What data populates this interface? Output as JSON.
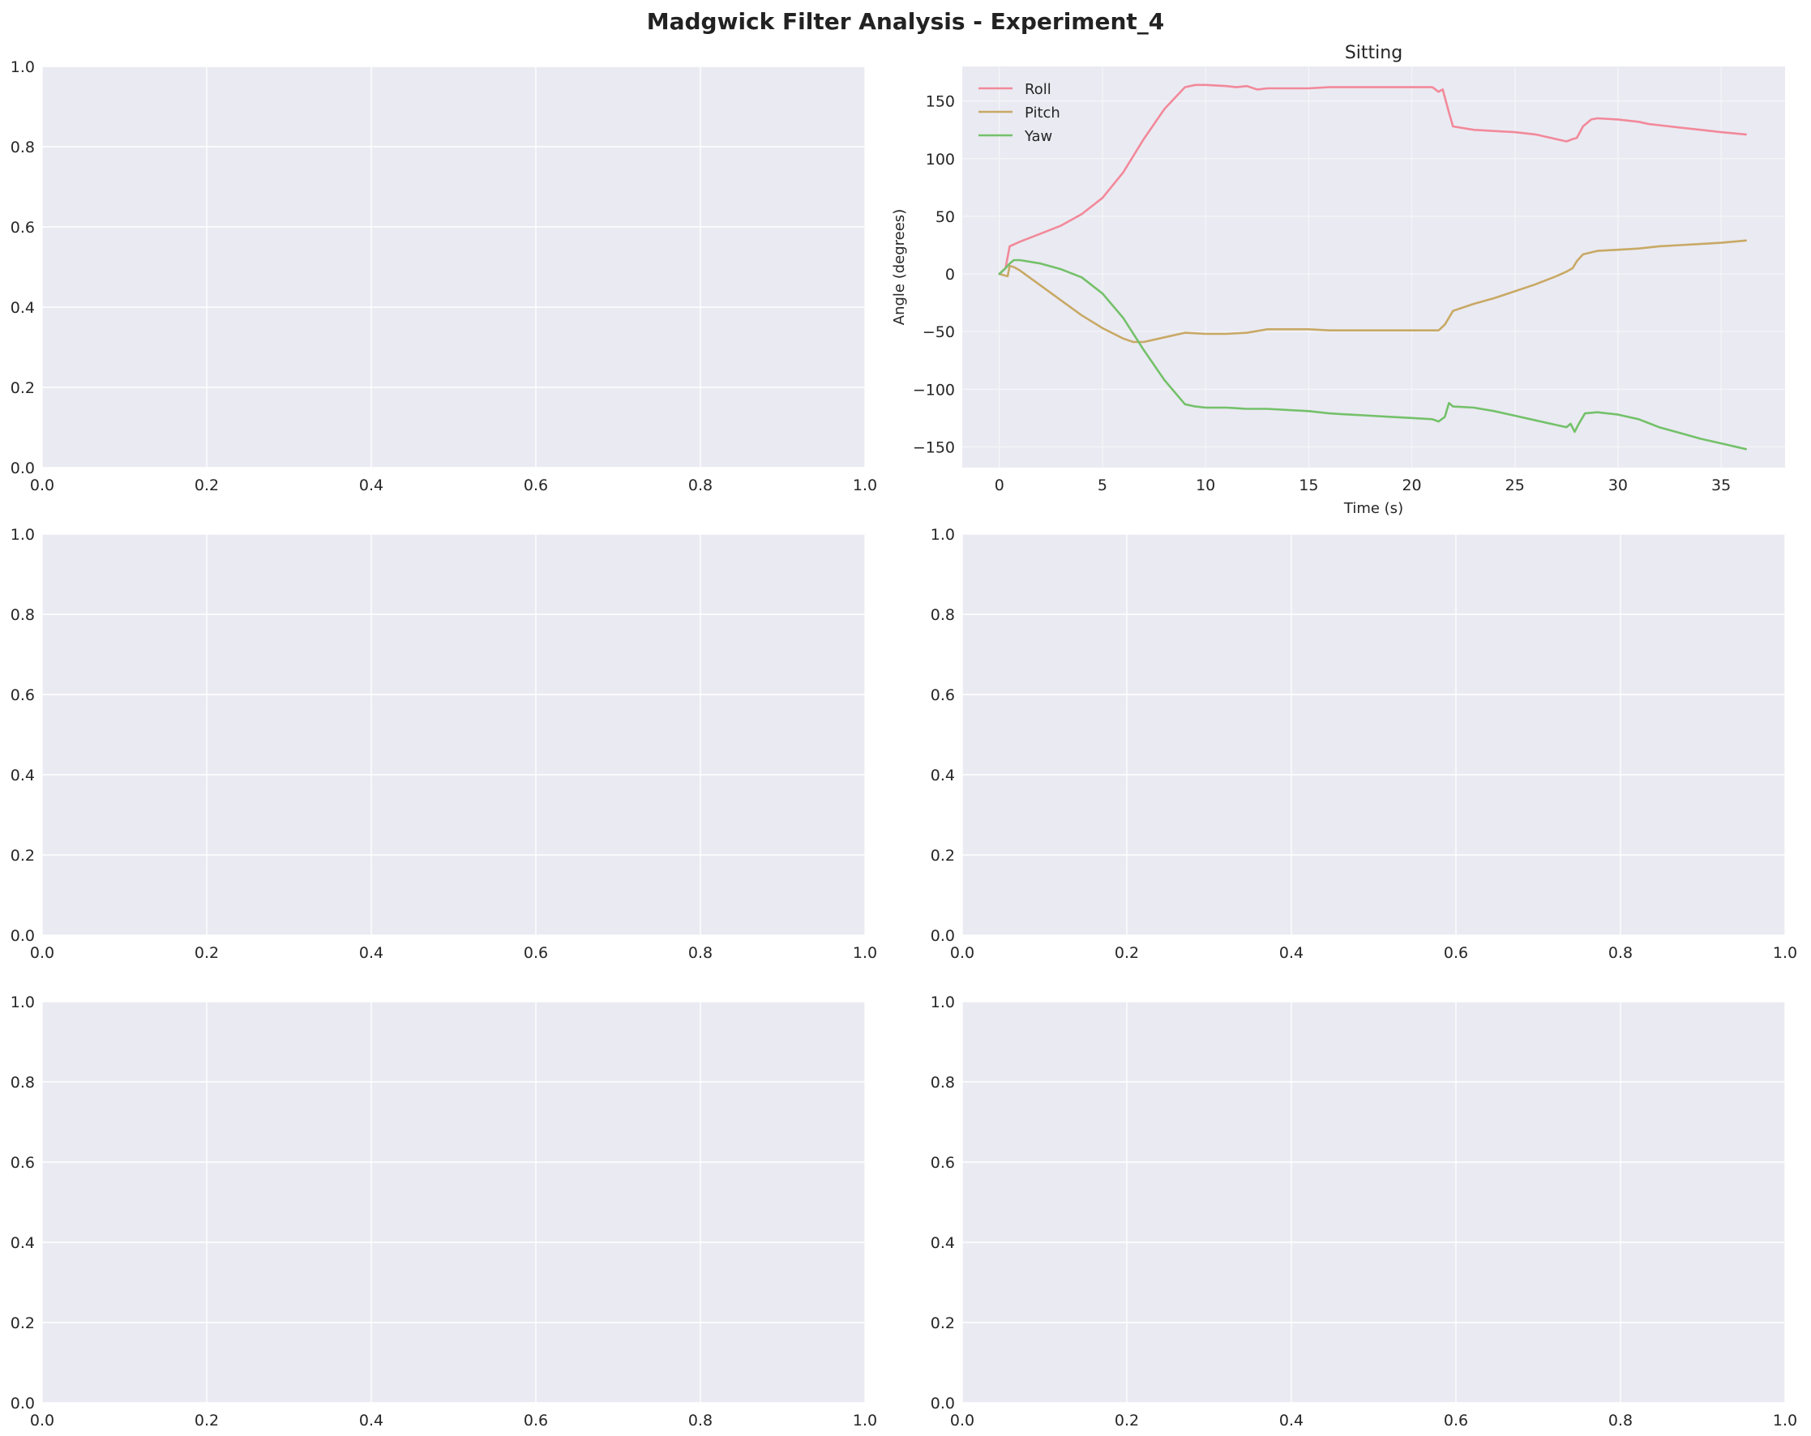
{
  "figure_title": "Madgwick Filter Analysis - Experiment_4",
  "chart_data": [
    {
      "type": "line",
      "title": "",
      "xlabel": "",
      "ylabel": "",
      "xlim": [
        0,
        1
      ],
      "ylim": [
        0,
        1
      ],
      "x_ticks": [
        "0.0",
        "0.2",
        "0.4",
        "0.6",
        "0.8",
        "1.0"
      ],
      "y_ticks": [
        "0.0",
        "0.2",
        "0.4",
        "0.6",
        "0.8",
        "1.0"
      ],
      "grid": true,
      "series": []
    },
    {
      "type": "line",
      "title": "Sitting",
      "xlabel": "Time (s)",
      "ylabel": "Angle (degrees)",
      "xlim": [
        -1.8,
        38.1
      ],
      "ylim": [
        -168,
        180
      ],
      "x_ticks": [
        "0",
        "5",
        "10",
        "15",
        "20",
        "25",
        "30",
        "35"
      ],
      "y_ticks": [
        "150",
        "100",
        "50",
        "0",
        "−50",
        "−100",
        "−150"
      ],
      "grid": true,
      "legend_position": "top-left",
      "series": [
        {
          "name": "Roll",
          "color": "#f2899a",
          "x": [
            0,
            0.3,
            0.5,
            1,
            2,
            3,
            4,
            5,
            6,
            7,
            8,
            9,
            9.5,
            10,
            11,
            11.5,
            12,
            12.5,
            13,
            14,
            15,
            16,
            17,
            18,
            19,
            20,
            21,
            21.3,
            21.5,
            21.8,
            22,
            23,
            24,
            25,
            26,
            27,
            27.5,
            27.8,
            28,
            28.3,
            28.7,
            29,
            30,
            31,
            31.5,
            32,
            33,
            34,
            35,
            36.2
          ],
          "y": [
            0,
            5,
            24,
            28,
            35,
            42,
            52,
            66,
            88,
            117,
            143,
            162,
            164,
            164,
            163,
            162,
            163,
            160,
            161,
            161,
            161,
            162,
            162,
            162,
            162,
            162,
            162,
            158,
            160,
            140,
            128,
            125,
            124,
            123,
            121,
            117,
            115,
            117,
            118,
            128,
            134,
            135,
            134,
            132,
            130,
            129,
            127,
            125,
            123,
            121
          ]
        },
        {
          "name": "Pitch",
          "color": "#c8a965",
          "x": [
            0,
            0.2,
            0.4,
            0.5,
            0.7,
            1,
            2,
            3,
            4,
            5,
            6,
            6.5,
            7,
            8,
            9,
            10,
            11,
            12,
            13,
            14,
            15,
            16,
            17,
            18,
            19,
            20,
            21,
            21.3,
            21.6,
            21.9,
            22,
            23,
            24,
            25,
            26,
            27,
            27.5,
            27.8,
            28,
            28.3,
            29,
            30,
            31,
            31.5,
            32,
            33,
            34,
            35,
            36.2
          ],
          "y": [
            0,
            -1,
            -2,
            7,
            6,
            3,
            -10,
            -23,
            -36,
            -47,
            -56,
            -59,
            -59,
            -55,
            -51,
            -52,
            -52,
            -51,
            -48,
            -48,
            -48,
            -49,
            -49,
            -49,
            -49,
            -49,
            -49,
            -49,
            -44,
            -35,
            -32,
            -26,
            -21,
            -15,
            -9,
            -2,
            2,
            5,
            11,
            17,
            20,
            21,
            22,
            23,
            24,
            25,
            26,
            27,
            29
          ]
        },
        {
          "name": "Yaw",
          "color": "#74c16a",
          "x": [
            0,
            0.3,
            0.5,
            0.7,
            1,
            2,
            3,
            4,
            5,
            6,
            7,
            8,
            9,
            9.5,
            10,
            11,
            12,
            13,
            14,
            15,
            16,
            17,
            18,
            19,
            20,
            21,
            21.3,
            21.6,
            21.8,
            22,
            23,
            24,
            25,
            26,
            27,
            27.5,
            27.7,
            27.9,
            28.1,
            28.4,
            29,
            30,
            31,
            32,
            33,
            34,
            35,
            36.2
          ],
          "y": [
            0,
            5,
            9,
            12,
            12,
            9,
            4,
            -3,
            -17,
            -38,
            -66,
            -92,
            -113,
            -115,
            -116,
            -116,
            -117,
            -117,
            -118,
            -119,
            -121,
            -122,
            -123,
            -124,
            -125,
            -126,
            -128,
            -124,
            -112,
            -115,
            -116,
            -119,
            -123,
            -127,
            -131,
            -133,
            -130,
            -137,
            -130,
            -121,
            -120,
            -122,
            -126,
            -133,
            -138,
            -143,
            -147,
            -152
          ]
        }
      ]
    },
    {
      "type": "line",
      "title": "",
      "xlabel": "",
      "ylabel": "",
      "xlim": [
        0,
        1
      ],
      "ylim": [
        0,
        1
      ],
      "x_ticks": [
        "0.0",
        "0.2",
        "0.4",
        "0.6",
        "0.8",
        "1.0"
      ],
      "y_ticks": [
        "0.0",
        "0.2",
        "0.4",
        "0.6",
        "0.8",
        "1.0"
      ],
      "grid": true,
      "series": []
    },
    {
      "type": "line",
      "title": "",
      "xlabel": "",
      "ylabel": "",
      "xlim": [
        0,
        1
      ],
      "ylim": [
        0,
        1
      ],
      "x_ticks": [
        "0.0",
        "0.2",
        "0.4",
        "0.6",
        "0.8",
        "1.0"
      ],
      "y_ticks": [
        "0.0",
        "0.2",
        "0.4",
        "0.6",
        "0.8",
        "1.0"
      ],
      "grid": true,
      "series": []
    },
    {
      "type": "line",
      "title": "",
      "xlabel": "",
      "ylabel": "",
      "xlim": [
        0,
        1
      ],
      "ylim": [
        0,
        1
      ],
      "x_ticks": [
        "0.0",
        "0.2",
        "0.4",
        "0.6",
        "0.8",
        "1.0"
      ],
      "y_ticks": [
        "0.0",
        "0.2",
        "0.4",
        "0.6",
        "0.8",
        "1.0"
      ],
      "grid": true,
      "series": []
    },
    {
      "type": "line",
      "title": "",
      "xlabel": "",
      "ylabel": "",
      "xlim": [
        0,
        1
      ],
      "ylim": [
        0,
        1
      ],
      "x_ticks": [
        "0.0",
        "0.2",
        "0.4",
        "0.6",
        "0.8",
        "1.0"
      ],
      "y_ticks": [
        "0.0",
        "0.2",
        "0.4",
        "0.6",
        "0.8",
        "1.0"
      ],
      "grid": true,
      "series": []
    }
  ],
  "style": {
    "axes_face": "#eaeaf2",
    "grid_color": "#ffffff",
    "text_color": "#262626"
  }
}
